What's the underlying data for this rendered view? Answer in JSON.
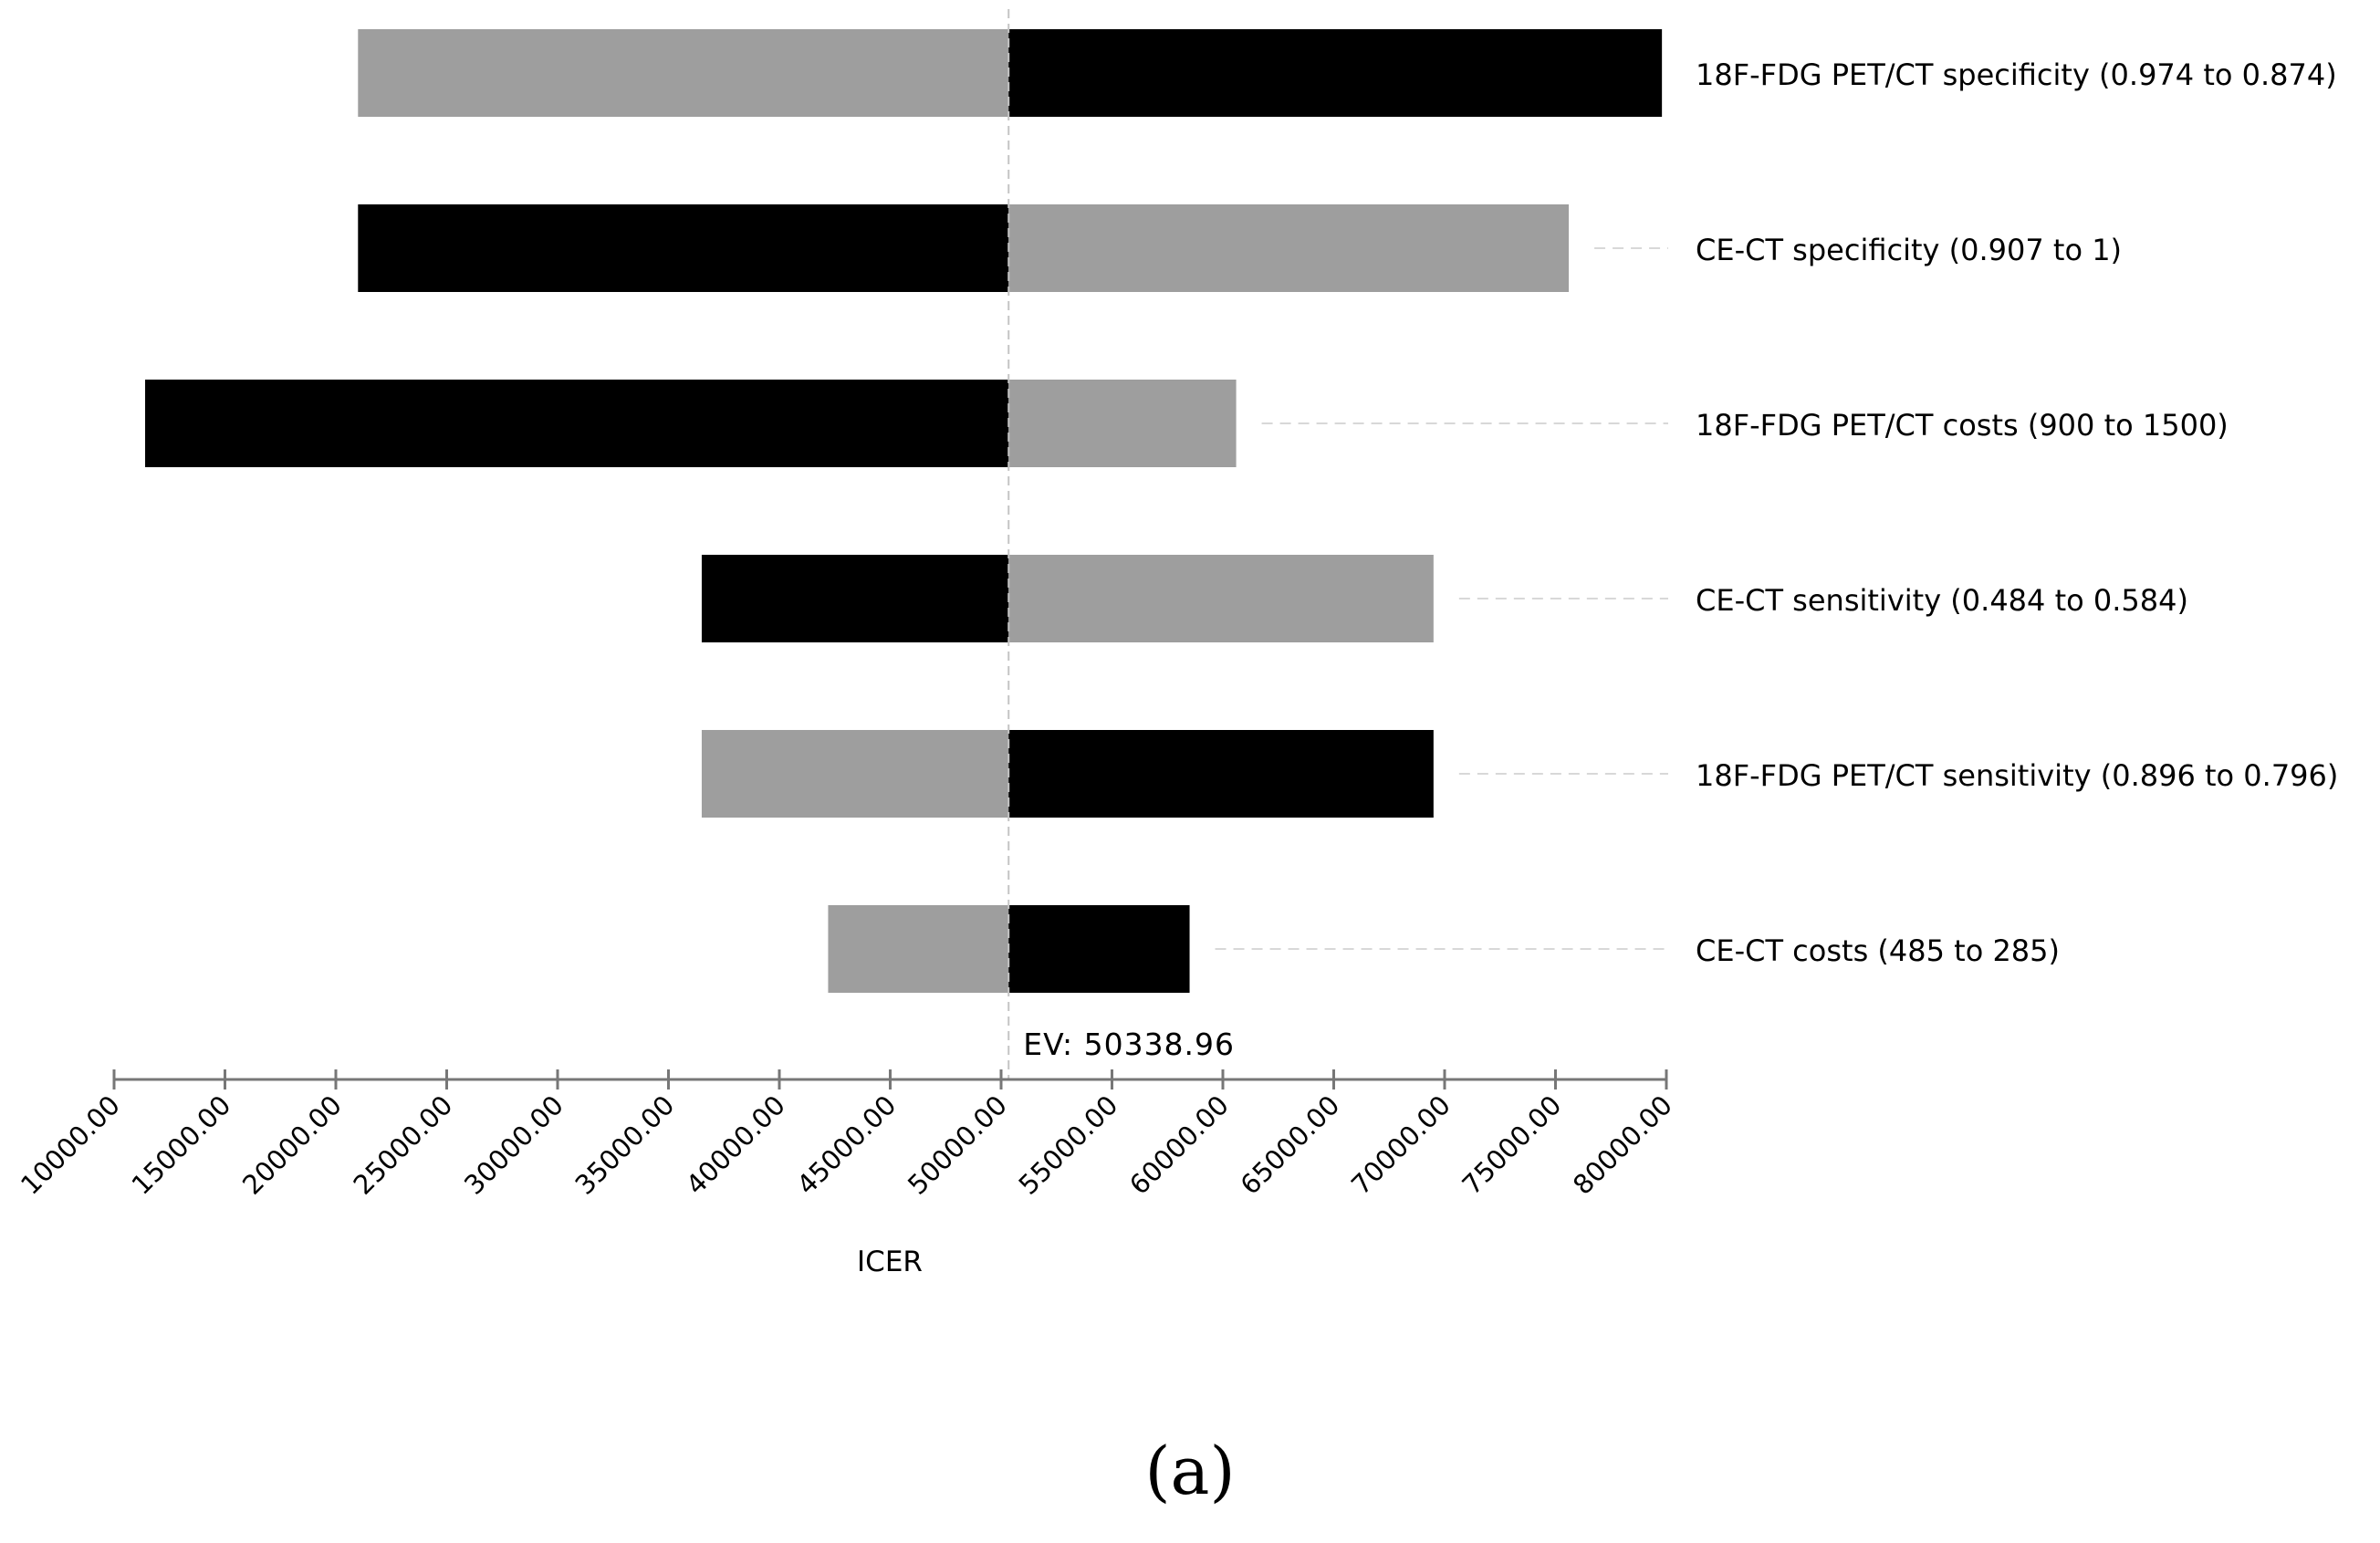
{
  "chart_data": {
    "type": "tornado",
    "base_value": 50338.96,
    "ev_label": "EV: 50338.96",
    "xlabel": "ICER",
    "xlim": [
      10000,
      80000
    ],
    "tick_step": 5000,
    "tick_labels": [
      "10000.00",
      "15000.00",
      "20000.00",
      "25000.00",
      "30000.00",
      "35000.00",
      "40000.00",
      "45000.00",
      "50000.00",
      "55000.00",
      "60000.00",
      "65000.00",
      "70000.00",
      "75000.00",
      "80000.00"
    ],
    "colors": {
      "gray": "#9e9e9e",
      "black": "#000000"
    },
    "bars": [
      {
        "label": "18F-FDG PET/CT specificity (0.974 to 0.874)",
        "low": 21000,
        "high": 79800,
        "left_color": "gray",
        "right_color": "black"
      },
      {
        "label": "CE-CT specificity (0.907 to 1)",
        "low": 21000,
        "high": 75600,
        "left_color": "black",
        "right_color": "gray"
      },
      {
        "label": "18F-FDG PET/CT costs (900 to 1500)",
        "low": 11400,
        "high": 60600,
        "left_color": "black",
        "right_color": "gray"
      },
      {
        "label": "CE-CT sensitivity (0.484 to 0.584)",
        "low": 36500,
        "high": 69500,
        "left_color": "black",
        "right_color": "gray"
      },
      {
        "label": "18F-FDG PET/CT sensitivity (0.896 to 0.796)",
        "low": 36500,
        "high": 69500,
        "left_color": "gray",
        "right_color": "black"
      },
      {
        "label": "CE-CT costs (485 to 285)",
        "low": 42200,
        "high": 58500,
        "left_color": "gray",
        "right_color": "black"
      }
    ]
  },
  "caption": "(a)"
}
